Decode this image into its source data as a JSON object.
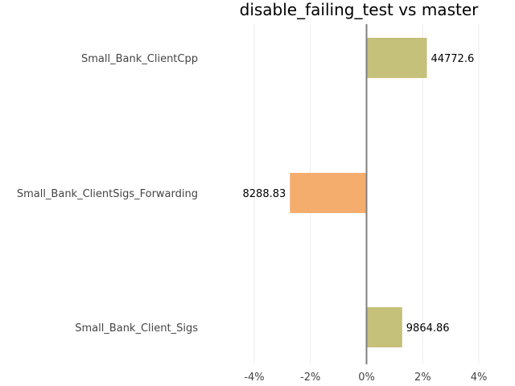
{
  "chart_data": {
    "type": "bar",
    "orientation": "horizontal",
    "title": "disable_failing_test vs master",
    "xlabel": "",
    "ylabel": "",
    "xlim": [
      -0.04,
      0.04
    ],
    "x_ticks": [
      -0.04,
      -0.02,
      0,
      0.02,
      0.04
    ],
    "x_tick_labels": [
      "-4%",
      "-2%",
      "0%",
      "2%",
      "4%"
    ],
    "grid": true,
    "bars": [
      {
        "category": "Small_Bank_ClientCpp",
        "value": 0.0215,
        "label": "44772.6",
        "color": "#c5c07a"
      },
      {
        "category": "Small_Bank_ClientSigs_Forwarding",
        "value": -0.0273,
        "label": "8288.83",
        "color": "#f5ad6e"
      },
      {
        "category": "Small_Bank_Client_Sigs",
        "value": 0.0127,
        "label": "9864.86",
        "color": "#c5c07a"
      }
    ]
  }
}
